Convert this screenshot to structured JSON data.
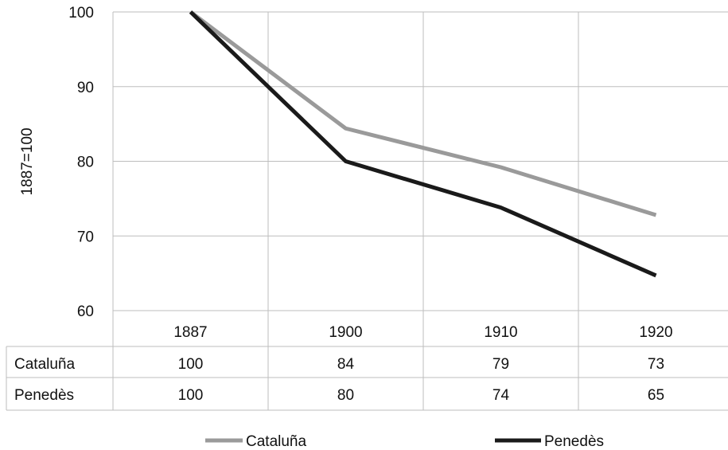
{
  "chart_data": {
    "type": "line",
    "title": "",
    "xlabel": "",
    "ylabel": "1887=100",
    "categories": [
      "1887",
      "1900",
      "1910",
      "1920"
    ],
    "ylim": [
      60,
      100
    ],
    "yticks": [
      60,
      70,
      80,
      90,
      100
    ],
    "grid": true,
    "series": [
      {
        "name": "Cataluña",
        "values": [
          100,
          84.4,
          79.2,
          72.8
        ],
        "table_values": [
          "100",
          "84",
          "79",
          "73"
        ],
        "color": "#9a9a9a"
      },
      {
        "name": "Penedès",
        "values": [
          100,
          80,
          73.8,
          64.7
        ],
        "table_values": [
          "100",
          "80",
          "74",
          "65"
        ],
        "color": "#1a1a1a"
      }
    ],
    "legend_position": "bottom",
    "data_table": true
  }
}
